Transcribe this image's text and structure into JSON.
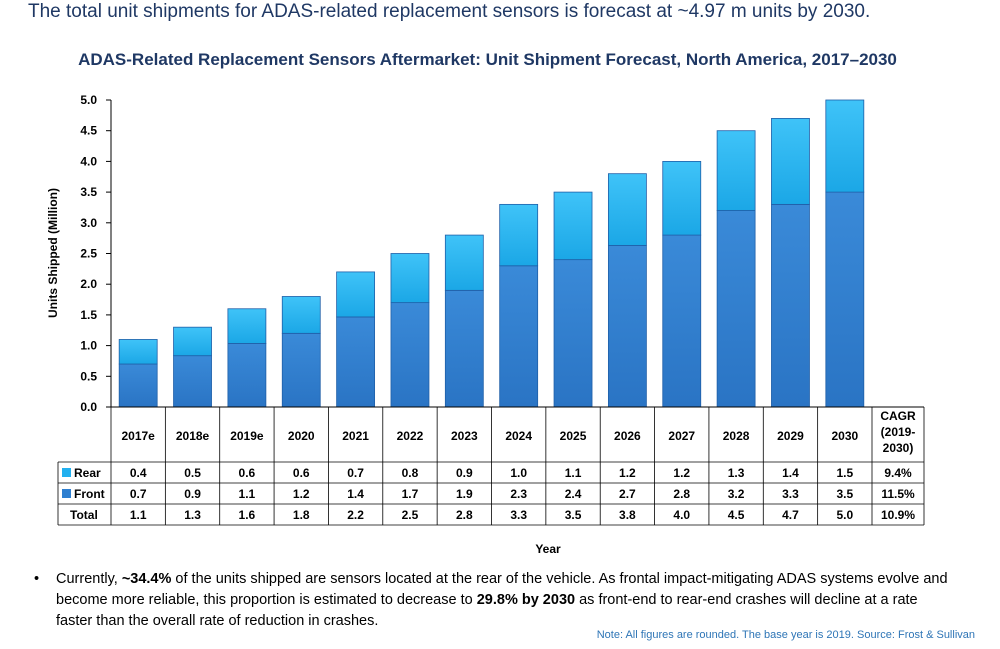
{
  "headline": "The total unit shipments for ADAS-related replacement sensors is forecast at ~4.97 m units by 2030.",
  "chart_data": {
    "type": "bar",
    "stacked": true,
    "title": "ADAS-Related Replacement Sensors Aftermarket: Unit Shipment Forecast, North America, 2017–2030",
    "xlabel": "Year",
    "ylabel": "Units Shipped (Million)",
    "ylim": [
      0,
      5
    ],
    "yticks": [
      "0.0",
      "0.5",
      "1.0",
      "1.5",
      "2.0",
      "2.5",
      "3.0",
      "3.5",
      "4.0",
      "4.5",
      "5.0"
    ],
    "grid": false,
    "categories": [
      "2017e",
      "2018e",
      "2019e",
      "2020",
      "2021",
      "2022",
      "2023",
      "2024",
      "2025",
      "2026",
      "2027",
      "2028",
      "2029",
      "2030"
    ],
    "series": [
      {
        "name": "Front",
        "color": "#2e7fd0",
        "values": [
          0.7,
          0.9,
          1.1,
          1.2,
          1.4,
          1.7,
          1.9,
          2.3,
          2.4,
          2.7,
          2.8,
          3.2,
          3.3,
          3.5
        ],
        "labels": [
          "0.7",
          "0.9",
          "1.1",
          "1.2",
          "1.4",
          "1.7",
          "1.9",
          "2.3",
          "2.4",
          "2.7",
          "2.8",
          "3.2",
          "3.3",
          "3.5"
        ],
        "cagr": "11.5%"
      },
      {
        "name": "Rear",
        "color": "#22b0ef",
        "values": [
          0.4,
          0.5,
          0.6,
          0.6,
          0.7,
          0.8,
          0.9,
          1.0,
          1.1,
          1.2,
          1.2,
          1.3,
          1.4,
          1.5
        ],
        "labels": [
          "0.4",
          "0.5",
          "0.6",
          "0.6",
          "0.7",
          "0.8",
          "0.9",
          "1.0",
          "1.1",
          "1.2",
          "1.2",
          "1.3",
          "1.4",
          "1.5"
        ],
        "cagr": "9.4%"
      }
    ],
    "totals": {
      "name": "Total",
      "values": [
        1.1,
        1.3,
        1.6,
        1.8,
        2.2,
        2.5,
        2.8,
        3.3,
        3.5,
        3.8,
        4.0,
        4.5,
        4.7,
        5.0
      ],
      "labels": [
        "1.1",
        "1.3",
        "1.6",
        "1.8",
        "2.2",
        "2.5",
        "2.8",
        "3.3",
        "3.5",
        "3.8",
        "4.0",
        "4.5",
        "4.7",
        "5.0"
      ],
      "cagr": "10.9%"
    },
    "cagr_header": [
      "CAGR",
      "(2019-",
      "2030)"
    ]
  },
  "bullet": {
    "pre": "Currently, ",
    "b1": "~34.4%",
    "mid": " of the units shipped are sensors located at the rear of the vehicle. As frontal impact-mitigating ADAS systems evolve and become more reliable, this proportion is estimated to decrease to ",
    "b2": "29.8% by 2030",
    "post": " as front-end to rear-end crashes will decline at a rate faster than the overall rate of reduction in crashes."
  },
  "note": "Note: All figures are rounded. The base year is 2019. Source: Frost & Sullivan"
}
